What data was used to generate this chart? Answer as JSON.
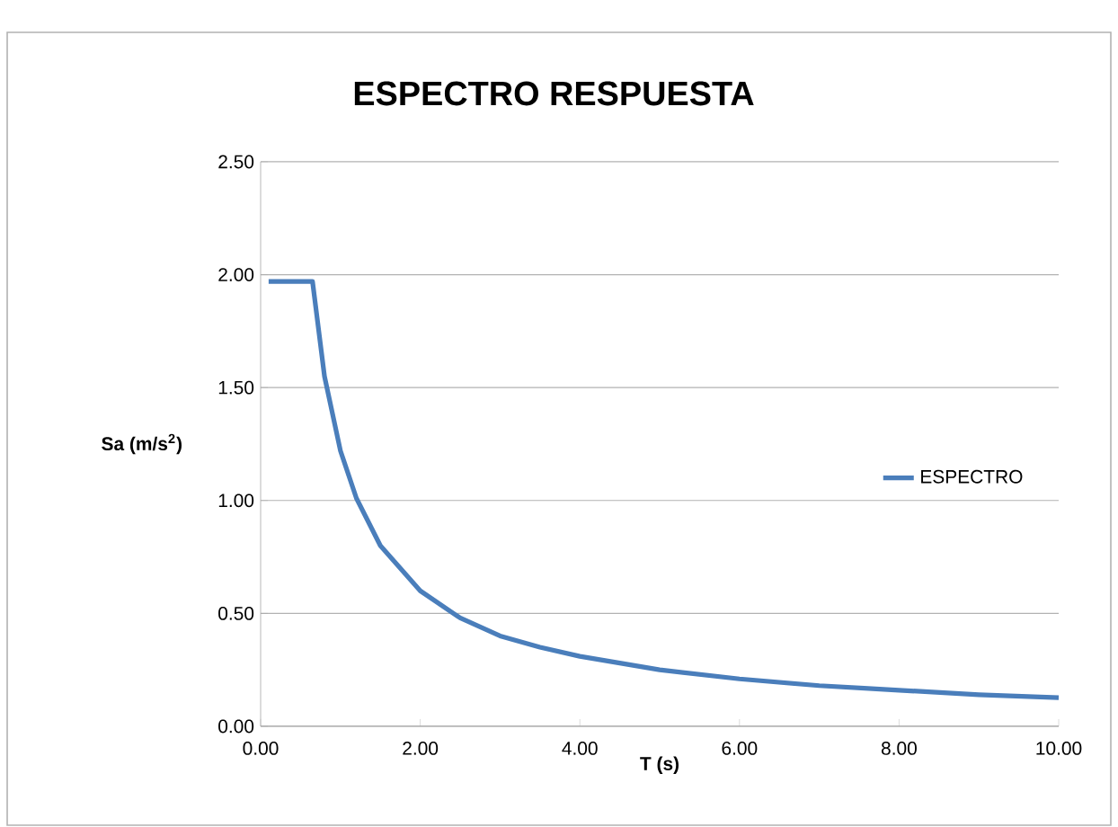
{
  "chart_data": {
    "type": "line",
    "title": "ESPECTRO RESPUESTA",
    "xlabel": "T (s)",
    "ylabel": "Sa (m/s$^{2}$)",
    "x": [
      0.1,
      0.65,
      0.8,
      1.0,
      1.2,
      1.5,
      2.0,
      2.5,
      3.0,
      3.5,
      4.0,
      5.0,
      6.0,
      7.0,
      8.0,
      9.0,
      10.0
    ],
    "series": [
      {
        "name": "ESPECTRO",
        "color": "#4a7ebb",
        "values": [
          1.97,
          1.97,
          1.55,
          1.22,
          1.01,
          0.8,
          0.6,
          0.48,
          0.4,
          0.35,
          0.31,
          0.25,
          0.21,
          0.18,
          0.16,
          0.14,
          0.127
        ]
      }
    ],
    "xlim": [
      0,
      10
    ],
    "ylim": [
      0,
      2.5
    ],
    "xticks": [
      {
        "value": 0,
        "label": "0.00"
      },
      {
        "value": 2,
        "label": "2.00"
      },
      {
        "value": 4,
        "label": "4.00"
      },
      {
        "value": 6,
        "label": "6.00"
      },
      {
        "value": 8,
        "label": "8.00"
      },
      {
        "value": 10,
        "label": "10.00"
      }
    ],
    "yticks": [
      {
        "value": 0,
        "label": "0.00"
      },
      {
        "value": 0.5,
        "label": "0.50"
      },
      {
        "value": 1,
        "label": "1.00"
      },
      {
        "value": 1.5,
        "label": "1.50"
      },
      {
        "value": 2,
        "label": "2.00"
      },
      {
        "value": 2.5,
        "label": "2.50"
      }
    ],
    "grid": "y",
    "legend": "right",
    "marker": "none",
    "line_style": "solid"
  }
}
